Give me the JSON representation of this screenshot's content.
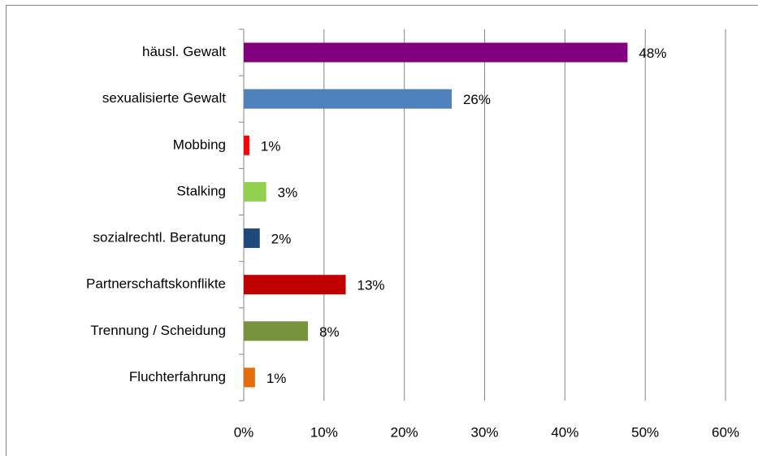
{
  "chart_data": {
    "type": "bar",
    "orientation": "horizontal",
    "categories": [
      "häusl. Gewalt",
      "sexualisierte Gewalt",
      "Mobbing",
      "Stalking",
      "sozialrechtl. Beratung",
      "Partnerschaftskonflikte",
      "Trennung / Scheidung",
      "Fluchterfahrung"
    ],
    "values": [
      47.8,
      25.9,
      0.7,
      2.8,
      2.0,
      12.7,
      8.0,
      1.4
    ],
    "value_labels": [
      "48%",
      "26%",
      "1%",
      "3%",
      "2%",
      "13%",
      "8%",
      "1%"
    ],
    "colors": [
      "#800080",
      "#4f81bd",
      "#ff0000",
      "#92d050",
      "#1f497d",
      "#c00000",
      "#77933c",
      "#e46c0a"
    ],
    "xlim": [
      0,
      60
    ],
    "xticks": [
      {
        "value": 0,
        "label": "0%"
      },
      {
        "value": 10,
        "label": "10%"
      },
      {
        "value": 20,
        "label": "20%"
      },
      {
        "value": 30,
        "label": "30%"
      },
      {
        "value": 40,
        "label": "40%"
      },
      {
        "value": 50,
        "label": "50%"
      },
      {
        "value": 60,
        "label": "60%"
      }
    ],
    "grid": true
  }
}
